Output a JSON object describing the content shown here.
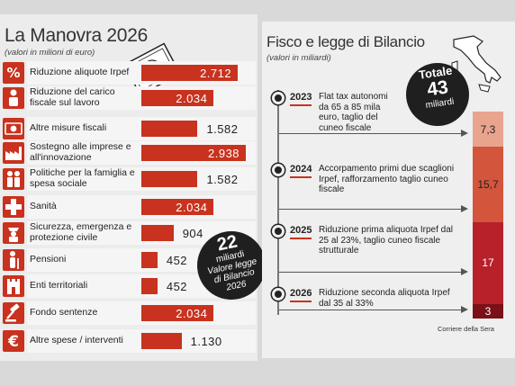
{
  "left": {
    "title": "La Manovra 2026",
    "subtitle": "(valori in milioni di euro)",
    "badge": {
      "big": "22",
      "line1": "miliardi",
      "line2": "Valore legge",
      "line3": "di Bilancio",
      "line4": "2026"
    }
  },
  "right": {
    "title": "Fisco e legge di Bilancio",
    "subtitle": "(valori in miliardi)",
    "total": {
      "label": "Totale",
      "value": "43",
      "unit": "miliardi"
    },
    "source": "Corriere della Sera"
  },
  "chart_data": [
    {
      "type": "bar",
      "title": "La Manovra 2026",
      "subtitle": "(valori in milioni di euro)",
      "categories": [
        "Riduzione aliquote Irpef",
        "Riduzione del carico fiscale sul lavoro",
        "Altre misure fiscali",
        "Sostegno alle imprese e all'innovazione",
        "Politiche per la famiglia e spesa sociale",
        "Sanità",
        "Sicurezza, emergenza e protezione civile",
        "Pensioni",
        "Enti territoriali",
        "Fondo sentenze",
        "Altre spese / interventi"
      ],
      "values": [
        2712,
        2034,
        1582,
        2938,
        1582,
        2034,
        904,
        452,
        452,
        2034,
        1130
      ],
      "labels": [
        "2.712",
        "2.034",
        "1.582",
        "2.938",
        "1.582",
        "2.034",
        "904",
        "452",
        "452",
        "2.034",
        "1.130"
      ],
      "icons": [
        "percent-icon",
        "worker-icon",
        "money-eye-icon",
        "factory-icon",
        "family-icon",
        "health-cross-icon",
        "police-icon",
        "elderly-icon",
        "tower-icon",
        "gavel-icon",
        "euro-icon"
      ]
    },
    {
      "type": "bar",
      "title": "Fisco e legge di Bilancio",
      "subtitle": "(valori in miliardi)",
      "categories": [
        "2023",
        "2024",
        "2025",
        "2026"
      ],
      "values": [
        7.3,
        15.7,
        17,
        3
      ],
      "labels": [
        "7,3",
        "15,7",
        "17",
        "3"
      ],
      "descriptions": [
        "Flat tax autonomi da 65 a 85 mila euro, taglio del cuneo fiscale",
        "Accorpamento primi due scaglioni Irpef, rafforzamento taglio cuneo fiscale",
        "Riduzione prima aliquota Irpef dal 25 al 23%, taglio cuneo fiscale strutturale",
        "Riduzione seconda aliquota Irpef dal 35 al 33%"
      ],
      "colors": [
        "#e9a48e",
        "#d2553c",
        "#b8202a",
        "#7a1018"
      ]
    }
  ]
}
